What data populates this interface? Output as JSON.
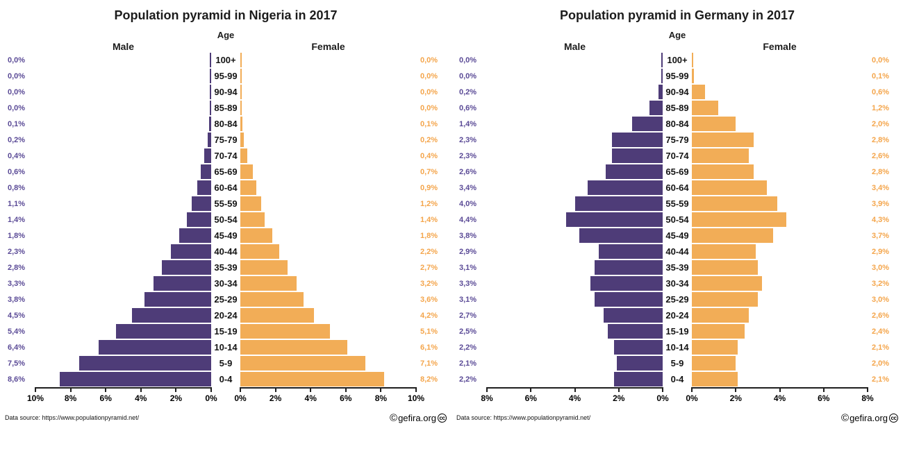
{
  "colors": {
    "male_bar": "#4E3C78",
    "female_bar": "#F2AD57",
    "male_value_label": "#5A4A96",
    "female_value_label": "#F4A54B",
    "axis": "#1e1e1e"
  },
  "chart_data": [
    {
      "type": "bar",
      "subtype": "population-pyramid",
      "title": "Population pyramid in Nigeria in 2017",
      "legend": {
        "male": "Male",
        "female": "Female",
        "age": "Age"
      },
      "categories": [
        "100+",
        "95-99",
        "90-94",
        "85-89",
        "80-84",
        "75-79",
        "70-74",
        "65-69",
        "60-64",
        "55-59",
        "50-54",
        "45-49",
        "40-44",
        "35-39",
        "30-34",
        "25-29",
        "20-24",
        "15-19",
        "10-14",
        "5-9",
        "0-4"
      ],
      "series": [
        {
          "name": "Male",
          "values": [
            0.0,
            0.0,
            0.0,
            0.0,
            0.1,
            0.2,
            0.4,
            0.6,
            0.8,
            1.1,
            1.4,
            1.8,
            2.3,
            2.8,
            3.3,
            3.8,
            4.5,
            5.4,
            6.4,
            7.5,
            8.6
          ]
        },
        {
          "name": "Female",
          "values": [
            0.0,
            0.0,
            0.0,
            0.0,
            0.1,
            0.2,
            0.4,
            0.7,
            0.9,
            1.2,
            1.4,
            1.8,
            2.2,
            2.7,
            3.2,
            3.6,
            4.2,
            5.1,
            6.1,
            7.1,
            8.2
          ]
        }
      ],
      "xlim": [
        0,
        10
      ],
      "male_axis_ticks": [
        "10%",
        "8%",
        "6%",
        "4%",
        "2%",
        "0%"
      ],
      "female_axis_ticks": [
        "0%",
        "2%",
        "4%",
        "6%",
        "8%",
        "10%"
      ],
      "value_label_format": "comma-decimal-percent",
      "grid": false,
      "source": "Data source: https://www.populationpyramid.net/",
      "logo_text": "gefira.org"
    },
    {
      "type": "bar",
      "subtype": "population-pyramid",
      "title": "Population pyramid in Germany in 2017",
      "legend": {
        "male": "Male",
        "female": "Female",
        "age": "Age"
      },
      "categories": [
        "100+",
        "95-99",
        "90-94",
        "85-89",
        "80-84",
        "75-79",
        "70-74",
        "65-69",
        "60-64",
        "55-59",
        "50-54",
        "45-49",
        "40-44",
        "35-39",
        "30-34",
        "25-29",
        "20-24",
        "15-19",
        "10-14",
        "5-9",
        "0-4"
      ],
      "series": [
        {
          "name": "Male",
          "values": [
            0.0,
            0.0,
            0.2,
            0.6,
            1.4,
            2.3,
            2.3,
            2.6,
            3.4,
            4.0,
            4.4,
            3.8,
            2.9,
            3.1,
            3.3,
            3.1,
            2.7,
            2.5,
            2.2,
            2.1,
            2.2
          ]
        },
        {
          "name": "Female",
          "values": [
            0.0,
            0.1,
            0.6,
            1.2,
            2.0,
            2.8,
            2.6,
            2.8,
            3.4,
            3.9,
            4.3,
            3.7,
            2.9,
            3.0,
            3.2,
            3.0,
            2.6,
            2.4,
            2.1,
            2.0,
            2.1
          ]
        }
      ],
      "xlim": [
        0,
        8
      ],
      "male_axis_ticks": [
        "8%",
        "6%",
        "4%",
        "2%",
        "0%"
      ],
      "female_axis_ticks": [
        "0%",
        "2%",
        "4%",
        "6%",
        "8%"
      ],
      "value_label_format": "comma-decimal-percent",
      "grid": false,
      "source": "Data source: https://www.populationpyramid.net/",
      "logo_text": "gefira.org"
    }
  ]
}
